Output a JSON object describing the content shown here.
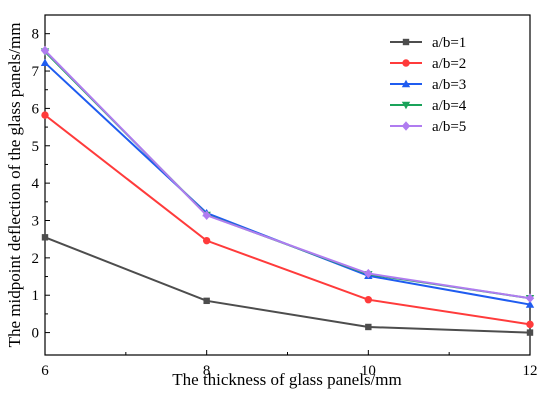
{
  "chart_data": {
    "type": "line",
    "title": "",
    "xlabel": "The thickness of glass panels/mm",
    "ylabel": "The midpoint deflection of the glass panels/mm",
    "x": [
      6,
      8,
      10,
      12
    ],
    "xlim": [
      6,
      12
    ],
    "ylim": [
      -0.6,
      8.5
    ],
    "xticks": [
      "6",
      "8",
      "10",
      "12"
    ],
    "yticks": [
      "0",
      "1",
      "2",
      "3",
      "4",
      "5",
      "6",
      "7",
      "8"
    ],
    "grid": false,
    "legend_position": "top-right",
    "series": [
      {
        "name": "a/b=1",
        "color": "#4d4d4d",
        "marker": "square",
        "values": [
          2.55,
          0.85,
          0.15,
          0.0
        ]
      },
      {
        "name": "a/b=2",
        "color": "#ff3b3b",
        "marker": "circle",
        "values": [
          5.82,
          2.46,
          0.88,
          0.22
        ]
      },
      {
        "name": "a/b=3",
        "color": "#1f5cf0",
        "marker": "triangle-up",
        "values": [
          7.22,
          3.2,
          1.52,
          0.75
        ]
      },
      {
        "name": "a/b=4",
        "color": "#1aa35a",
        "marker": "triangle-down",
        "values": [
          7.52,
          3.15,
          1.56,
          0.92
        ]
      },
      {
        "name": "a/b=5",
        "color": "#b07cf0",
        "marker": "diamond",
        "values": [
          7.55,
          3.14,
          1.58,
          0.92
        ]
      }
    ]
  }
}
